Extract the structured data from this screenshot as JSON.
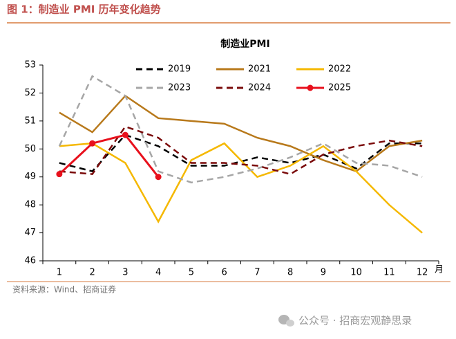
{
  "header": "图 1：制造业 PMI 历年变化趋势",
  "source": "资料来源：Wind、招商证券",
  "watermark": "公众号 · 招商宏观静思录",
  "chart_data": {
    "type": "line",
    "title": "制造业PMI",
    "xlabel": "月",
    "categories": [
      "1",
      "2",
      "3",
      "4",
      "5",
      "6",
      "7",
      "8",
      "9",
      "10",
      "11",
      "12"
    ],
    "ylim": [
      46,
      53
    ],
    "yticks": [
      46,
      47,
      48,
      49,
      50,
      51,
      52,
      53
    ],
    "series": [
      {
        "name": "2019",
        "color": "#000000",
        "style": "dashed",
        "values": [
          49.5,
          49.2,
          50.5,
          50.1,
          49.4,
          49.4,
          49.7,
          49.5,
          49.8,
          49.3,
          50.2,
          50.2
        ]
      },
      {
        "name": "2021",
        "color": "#b8791b",
        "style": "solid",
        "values": [
          51.3,
          50.6,
          51.9,
          51.1,
          51.0,
          50.9,
          50.4,
          50.1,
          49.6,
          49.2,
          50.1,
          50.3
        ]
      },
      {
        "name": "2022",
        "color": "#f5b800",
        "style": "solid",
        "values": [
          50.1,
          50.2,
          49.5,
          47.4,
          49.6,
          50.2,
          49.0,
          49.4,
          50.1,
          49.2,
          48.0,
          47.0
        ]
      },
      {
        "name": "2023",
        "color": "#a6a6a6",
        "style": "dashed",
        "values": [
          50.1,
          52.6,
          51.9,
          49.2,
          48.8,
          49.0,
          49.3,
          49.7,
          50.2,
          49.5,
          49.4,
          49.0
        ]
      },
      {
        "name": "2024",
        "color": "#7a0a0a",
        "style": "dashed",
        "values": [
          49.2,
          49.1,
          50.8,
          50.4,
          49.5,
          49.5,
          49.4,
          49.1,
          49.8,
          50.1,
          50.3,
          50.1
        ]
      },
      {
        "name": "2025",
        "color": "#e8101c",
        "style": "solid",
        "marker": true,
        "values": [
          49.1,
          50.2,
          50.5,
          49.0,
          null,
          null,
          null,
          null,
          null,
          null,
          null,
          null
        ]
      }
    ]
  }
}
